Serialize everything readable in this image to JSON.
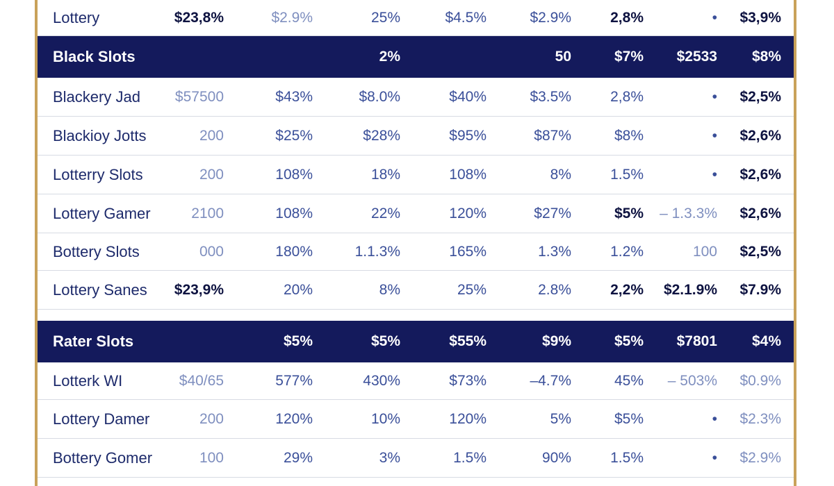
{
  "rows": [
    {
      "kind": "data",
      "name": "Lottery",
      "cells": [
        "$23,8%",
        "$2.9%",
        "25%",
        "$4.5%",
        "$2.9%",
        "2,8%",
        "•",
        "$3,9%"
      ],
      "styles": [
        "strong",
        "light",
        "",
        "",
        "",
        "strong",
        "",
        "strong"
      ]
    },
    {
      "kind": "header",
      "name": "Black Slots",
      "cells": [
        "",
        "",
        "2%",
        "",
        "50",
        "$7%",
        "$2533",
        "$8%"
      ],
      "styles": [
        "",
        "",
        "",
        "",
        "",
        "",
        "",
        ""
      ]
    },
    {
      "kind": "data",
      "name": "Blackery Jad",
      "cells": [
        "$57500",
        "$43%",
        "$8.0%",
        "$40%",
        "$3.5%",
        "2,8%",
        "•",
        "$2,5%"
      ],
      "styles": [
        "light",
        "",
        "",
        "",
        "",
        "",
        "",
        "strong"
      ]
    },
    {
      "kind": "data",
      "name": "Blackioy Jotts",
      "cells": [
        "200",
        "$25%",
        "$28%",
        "$95%",
        "$87%",
        "$8%",
        "•",
        "$2,6%"
      ],
      "styles": [
        "light",
        "",
        "",
        "",
        "",
        "",
        "",
        "strong"
      ]
    },
    {
      "kind": "data",
      "name": "Lotterry Slots",
      "cells": [
        "200",
        "108%",
        "18%",
        "108%",
        "8%",
        "1.5%",
        "•",
        "$2,6%"
      ],
      "styles": [
        "light",
        "",
        "",
        "",
        "",
        "",
        "",
        "strong"
      ]
    },
    {
      "kind": "data",
      "name": "Lottery Gamer",
      "cells": [
        "2100",
        "108%",
        "22%",
        "120%",
        "$27%",
        "$5%",
        "– 1.3.3%",
        "$2,6%"
      ],
      "styles": [
        "light",
        "",
        "",
        "",
        "",
        "strong",
        "light",
        "strong"
      ]
    },
    {
      "kind": "data",
      "name": "Bottery Slots",
      "cells": [
        "000",
        "180%",
        "1.1.3%",
        "165%",
        "1.3%",
        "1.2%",
        "100",
        "$2,5%"
      ],
      "styles": [
        "light",
        "",
        "",
        "",
        "",
        "",
        "light",
        "strong"
      ]
    },
    {
      "kind": "data",
      "name": "Lottery Sanes",
      "cells": [
        "$23,9%",
        "20%",
        "8%",
        "25%",
        "2.8%",
        "2,2%",
        "$2.1.9%",
        "$7.9%"
      ],
      "styles": [
        "strong",
        "",
        "",
        "",
        "",
        "strong",
        "strong",
        "strong"
      ]
    },
    {
      "kind": "header",
      "name": "Rater Slots",
      "cells": [
        "",
        "$5%",
        "$5%",
        "$55%",
        "$9%",
        "$5%",
        "$7801",
        "$4%"
      ],
      "styles": [
        "",
        "",
        "",
        "",
        "",
        "",
        "",
        ""
      ]
    },
    {
      "kind": "data",
      "name": "Lotterk WI",
      "cells": [
        "$40/65",
        "577%",
        "430%",
        "$73%",
        "–4.7%",
        "45%",
        "– 503%",
        "$0.9%"
      ],
      "styles": [
        "light",
        "",
        "",
        "",
        "",
        "",
        "light",
        "light"
      ]
    },
    {
      "kind": "data",
      "name": "Lottery Damer",
      "cells": [
        "200",
        "120%",
        "10%",
        "120%",
        "5%",
        "$5%",
        "•",
        "$2.3%"
      ],
      "styles": [
        "light",
        "",
        "",
        "",
        "",
        "",
        "",
        "light"
      ]
    },
    {
      "kind": "data",
      "name": "Bottery Gomer",
      "cells": [
        "100",
        "29%",
        "3%",
        "1.5%",
        "90%",
        "1.5%",
        "•",
        "$2.9%"
      ],
      "styles": [
        "light",
        "",
        "",
        "",
        "",
        "",
        "",
        "light"
      ]
    }
  ]
}
